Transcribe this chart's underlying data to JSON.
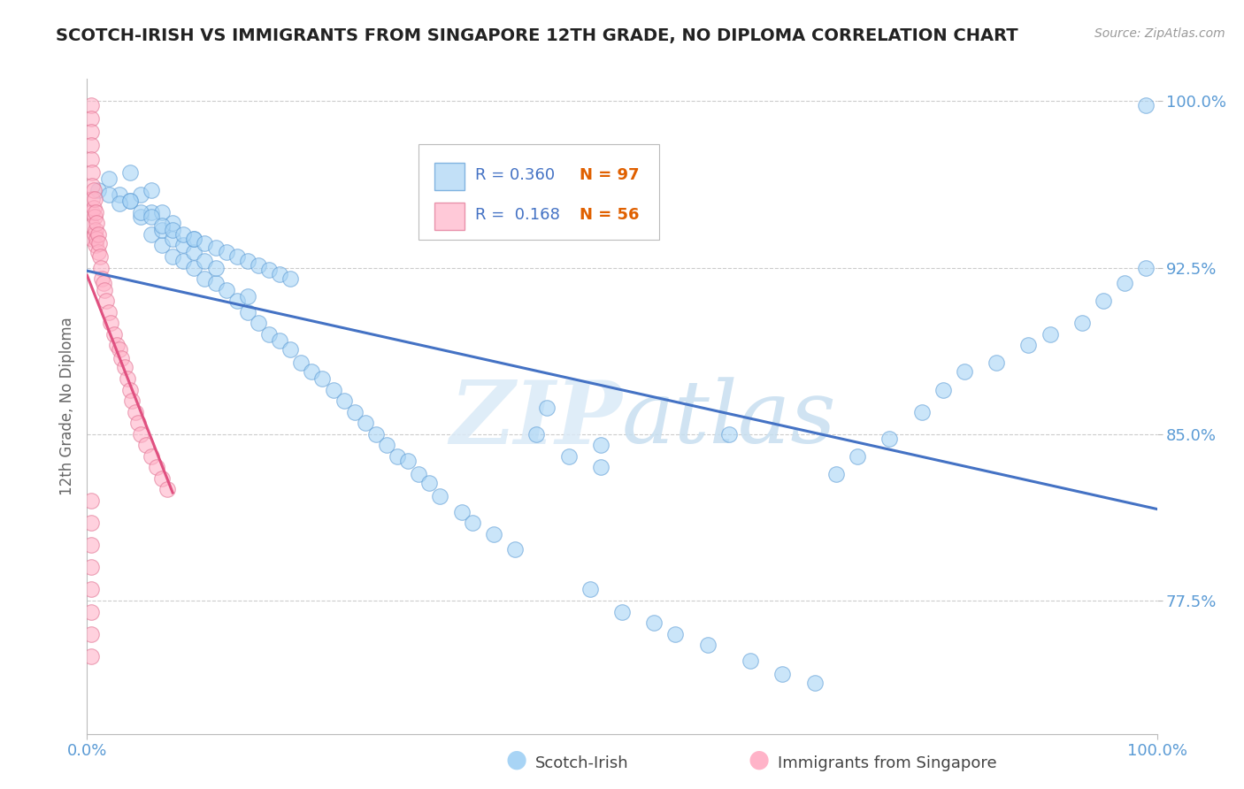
{
  "title": "SCOTCH-IRISH VS IMMIGRANTS FROM SINGAPORE 12TH GRADE, NO DIPLOMA CORRELATION CHART",
  "source": "Source: ZipAtlas.com",
  "ylabel": "12th Grade, No Diploma",
  "xlim": [
    0.0,
    1.0
  ],
  "ylim": [
    0.715,
    1.01
  ],
  "yticks": [
    0.775,
    0.85,
    0.925,
    1.0
  ],
  "ytick_labels": [
    "77.5%",
    "85.0%",
    "92.5%",
    "100.0%"
  ],
  "xtick_labels": [
    "0.0%",
    "100.0%"
  ],
  "r_blue": 0.36,
  "n_blue": 97,
  "r_pink": 0.168,
  "n_pink": 56,
  "legend_blue": "Scotch-Irish",
  "legend_pink": "Immigrants from Singapore",
  "blue_color": "#a8d4f5",
  "pink_color": "#ffb3c8",
  "blue_edge_color": "#5b9bd5",
  "pink_edge_color": "#e07090",
  "blue_line_color": "#4472c4",
  "pink_line_color": "#e05080",
  "axis_color": "#5b9bd5",
  "background_color": "#ffffff",
  "grid_color": "#cccccc",
  "title_color": "#222222",
  "watermark_color": "#daeaf7",
  "blue_scatter_x": [
    0.02,
    0.03,
    0.04,
    0.04,
    0.05,
    0.05,
    0.06,
    0.06,
    0.06,
    0.07,
    0.07,
    0.07,
    0.08,
    0.08,
    0.08,
    0.09,
    0.09,
    0.1,
    0.1,
    0.1,
    0.11,
    0.11,
    0.12,
    0.12,
    0.13,
    0.14,
    0.15,
    0.15,
    0.16,
    0.17,
    0.18,
    0.19,
    0.2,
    0.21,
    0.22,
    0.23,
    0.24,
    0.25,
    0.26,
    0.27,
    0.28,
    0.29,
    0.3,
    0.31,
    0.32,
    0.33,
    0.35,
    0.36,
    0.38,
    0.4,
    0.42,
    0.43,
    0.45,
    0.47,
    0.48,
    0.48,
    0.5,
    0.53,
    0.55,
    0.58,
    0.6,
    0.62,
    0.65,
    0.68,
    0.7,
    0.72,
    0.75,
    0.78,
    0.8,
    0.82,
    0.85,
    0.88,
    0.9,
    0.93,
    0.95,
    0.97,
    0.99,
    0.01,
    0.02,
    0.03,
    0.04,
    0.05,
    0.06,
    0.07,
    0.08,
    0.09,
    0.1,
    0.11,
    0.12,
    0.13,
    0.14,
    0.15,
    0.16,
    0.17,
    0.18,
    0.19,
    0.99
  ],
  "blue_scatter_y": [
    0.965,
    0.958,
    0.955,
    0.968,
    0.948,
    0.958,
    0.94,
    0.95,
    0.96,
    0.935,
    0.942,
    0.95,
    0.93,
    0.938,
    0.945,
    0.928,
    0.935,
    0.925,
    0.932,
    0.938,
    0.92,
    0.928,
    0.918,
    0.925,
    0.915,
    0.91,
    0.905,
    0.912,
    0.9,
    0.895,
    0.892,
    0.888,
    0.882,
    0.878,
    0.875,
    0.87,
    0.865,
    0.86,
    0.855,
    0.85,
    0.845,
    0.84,
    0.838,
    0.832,
    0.828,
    0.822,
    0.815,
    0.81,
    0.805,
    0.798,
    0.85,
    0.862,
    0.84,
    0.78,
    0.835,
    0.845,
    0.77,
    0.765,
    0.76,
    0.755,
    0.85,
    0.748,
    0.742,
    0.738,
    0.832,
    0.84,
    0.848,
    0.86,
    0.87,
    0.878,
    0.882,
    0.89,
    0.895,
    0.9,
    0.91,
    0.918,
    0.925,
    0.96,
    0.958,
    0.954,
    0.955,
    0.95,
    0.948,
    0.944,
    0.942,
    0.94,
    0.938,
    0.936,
    0.934,
    0.932,
    0.93,
    0.928,
    0.926,
    0.924,
    0.922,
    0.92,
    0.998
  ],
  "pink_scatter_x": [
    0.004,
    0.004,
    0.004,
    0.004,
    0.004,
    0.005,
    0.005,
    0.005,
    0.005,
    0.005,
    0.005,
    0.006,
    0.006,
    0.007,
    0.007,
    0.007,
    0.008,
    0.008,
    0.008,
    0.009,
    0.009,
    0.01,
    0.01,
    0.011,
    0.012,
    0.013,
    0.014,
    0.015,
    0.016,
    0.018,
    0.02,
    0.022,
    0.025,
    0.028,
    0.03,
    0.032,
    0.035,
    0.038,
    0.04,
    0.042,
    0.045,
    0.048,
    0.05,
    0.055,
    0.06,
    0.065,
    0.07,
    0.075,
    0.004,
    0.004,
    0.004,
    0.004,
    0.004,
    0.004,
    0.004,
    0.004
  ],
  "pink_scatter_y": [
    0.998,
    0.992,
    0.986,
    0.98,
    0.974,
    0.968,
    0.962,
    0.956,
    0.95,
    0.944,
    0.938,
    0.96,
    0.952,
    0.956,
    0.948,
    0.94,
    0.95,
    0.942,
    0.935,
    0.945,
    0.938,
    0.94,
    0.932,
    0.936,
    0.93,
    0.925,
    0.92,
    0.918,
    0.915,
    0.91,
    0.905,
    0.9,
    0.895,
    0.89,
    0.888,
    0.884,
    0.88,
    0.875,
    0.87,
    0.865,
    0.86,
    0.855,
    0.85,
    0.845,
    0.84,
    0.835,
    0.83,
    0.825,
    0.82,
    0.81,
    0.8,
    0.79,
    0.78,
    0.77,
    0.76,
    0.75
  ]
}
